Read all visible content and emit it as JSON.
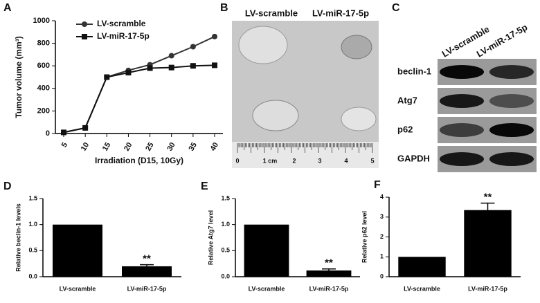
{
  "chart_data": [
    {
      "panel": "A",
      "type": "line",
      "categories": [
        "5",
        "10",
        "15",
        "20",
        "25",
        "30",
        "35",
        "40"
      ],
      "series": [
        {
          "name": "LV-scramble",
          "color": "#333333",
          "marker": "circle",
          "values": [
            10,
            50,
            500,
            560,
            610,
            690,
            770,
            860
          ],
          "errors": [
            5,
            5,
            15,
            10,
            10,
            12,
            15,
            15
          ]
        },
        {
          "name": "LV-miR-17-5p",
          "color": "#111111",
          "marker": "square",
          "values": [
            10,
            50,
            500,
            540,
            580,
            585,
            600,
            605
          ],
          "errors": [
            5,
            5,
            15,
            10,
            10,
            10,
            10,
            12
          ]
        }
      ],
      "xlabel": "Irradiation (D15, 10Gy)",
      "ylabel": "Tumor volume (mm³)",
      "ylim": [
        0,
        1000
      ],
      "yticks": [
        0,
        200,
        400,
        600,
        800,
        1000
      ],
      "legend": "upper left"
    },
    {
      "panel": "D",
      "type": "bar",
      "categories": [
        "LV-scramble",
        "LV-miR-17-5p"
      ],
      "values": [
        1.0,
        0.2
      ],
      "errors": [
        0,
        0.03
      ],
      "color": "#000000",
      "ylabel": "Relative beclin-1 levels",
      "ylim": [
        0,
        1.5
      ],
      "yticks": [
        {
          "value": 0,
          "label": "0.0"
        },
        {
          "value": 0.5,
          "label": "0.5"
        },
        {
          "value": 1,
          "label": "1.0"
        },
        {
          "value": 1.5,
          "label": "1.5"
        }
      ],
      "annotations": [
        {
          "text": "**",
          "x": "LV-miR-17-5p"
        }
      ]
    },
    {
      "panel": "E",
      "type": "bar",
      "categories": [
        "LV-scramble",
        "LV-miR-17-5p"
      ],
      "values": [
        1.0,
        0.12
      ],
      "errors": [
        0,
        0.03
      ],
      "color": "#000000",
      "ylabel": "Relative Atg7 level",
      "ylim": [
        0,
        1.5
      ],
      "yticks": [
        {
          "value": 0,
          "label": "0.0"
        },
        {
          "value": 0.5,
          "label": "0.5"
        },
        {
          "value": 1,
          "label": "1.0"
        },
        {
          "value": 1.5,
          "label": "1.5"
        }
      ],
      "annotations": [
        {
          "text": "**",
          "x": "LV-miR-17-5p"
        }
      ]
    },
    {
      "panel": "F",
      "type": "bar",
      "categories": [
        "LV-scramble",
        "LV-miR-17-5p"
      ],
      "values": [
        1,
        3.35
      ],
      "errors": [
        0,
        0.35
      ],
      "color": "#000000",
      "ylabel": "Relative p62 level",
      "ylim": [
        0,
        4
      ],
      "yticks": [
        0,
        1,
        2,
        3,
        4
      ],
      "annotations": [
        {
          "text": "**",
          "x": "LV-miR-17-5p"
        }
      ]
    }
  ],
  "photo_panel": {
    "panel": "B",
    "labels": [
      "LV-scramble",
      "LV-miR-17-5p"
    ],
    "ruler_labels": [
      "0",
      "1 cm",
      "2",
      "3",
      "4",
      "5"
    ]
  },
  "blot_panel": {
    "panel": "C",
    "columns": [
      "LV-scramble",
      "LV-miR-17-5p"
    ],
    "rows": [
      "beclin-1",
      "Atg7",
      "p62",
      "GAPDH"
    ]
  }
}
